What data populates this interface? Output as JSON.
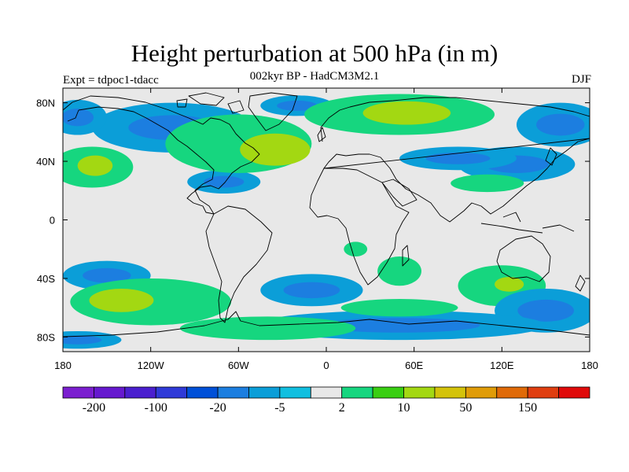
{
  "title": "Height perturbation at 500 hPa (in m)",
  "subtitle": "002kyr BP - HadCM3M2.1",
  "experiment": "Expt = tdpoc1-tdacc",
  "season": "DJF",
  "map": {
    "projection": "cylindrical-equidistant",
    "lon_range": [
      -180,
      180
    ],
    "lat_range": [
      -90,
      90
    ],
    "background_color": "#e8e8e8",
    "lon_ticks": [
      {
        "value": -180,
        "label": "180"
      },
      {
        "value": -120,
        "label": "120W"
      },
      {
        "value": -60,
        "label": "60W"
      },
      {
        "value": 0,
        "label": "0"
      },
      {
        "value": 60,
        "label": "60E"
      },
      {
        "value": 120,
        "label": "120E"
      },
      {
        "value": 180,
        "label": "180"
      }
    ],
    "lat_ticks": [
      {
        "value": 80,
        "label": "80N"
      },
      {
        "value": 40,
        "label": "40N"
      },
      {
        "value": 0,
        "label": "0"
      },
      {
        "value": -40,
        "label": "40S"
      },
      {
        "value": -80,
        "label": "80S"
      }
    ]
  },
  "colorbar": {
    "colors": [
      "#7b1fd0",
      "#6619cf",
      "#4a1fcf",
      "#2f3ad8",
      "#0050d8",
      "#1c7ee0",
      "#0b9ed8",
      "#11bfe0",
      "#e8e8e8",
      "#16d67f",
      "#39cf12",
      "#a3d812",
      "#d4c30a",
      "#e09c08",
      "#e06a08",
      "#e03e10",
      "#e00a0a"
    ],
    "labels": [
      {
        "index": 1,
        "label": "-200"
      },
      {
        "index": 3,
        "label": "-100"
      },
      {
        "index": 5,
        "label": "-20"
      },
      {
        "index": 7,
        "label": "-5"
      },
      {
        "index": 9,
        "label": "2"
      },
      {
        "index": 11,
        "label": "10"
      },
      {
        "index": 13,
        "label": "50"
      },
      {
        "index": 15,
        "label": "150"
      }
    ]
  },
  "field_blobs": [
    {
      "lon": -105,
      "lat": 63,
      "rlon": 55,
      "rlat": 17,
      "value": -8
    },
    {
      "lon": 160,
      "lat": 65,
      "rlon": 30,
      "rlat": 15,
      "value": -8
    },
    {
      "lon": -170,
      "lat": 70,
      "rlon": 20,
      "rlat": 12,
      "value": -8
    },
    {
      "lon": 130,
      "lat": 38,
      "rlon": 40,
      "rlat": 12,
      "value": -8
    },
    {
      "lon": 90,
      "lat": 42,
      "rlon": 40,
      "rlat": 8,
      "value": -8
    },
    {
      "lon": -20,
      "lat": 78,
      "rlon": 25,
      "rlat": 7,
      "value": -8
    },
    {
      "lon": -70,
      "lat": 26,
      "rlon": 25,
      "rlat": 8,
      "value": -8
    },
    {
      "lon": -60,
      "lat": 52,
      "rlon": 50,
      "rlat": 20,
      "value": 6
    },
    {
      "lon": 50,
      "lat": 72,
      "rlon": 65,
      "rlat": 14,
      "value": 6
    },
    {
      "lon": -160,
      "lat": 36,
      "rlon": 28,
      "rlat": 14,
      "value": 6
    },
    {
      "lon": -35,
      "lat": 48,
      "rlon": 24,
      "rlat": 11,
      "value": 24
    },
    {
      "lon": 55,
      "lat": 73,
      "rlon": 30,
      "rlat": 8,
      "value": 24
    },
    {
      "lon": -158,
      "lat": 37,
      "rlon": 12,
      "rlat": 7,
      "value": 24
    },
    {
      "lon": 110,
      "lat": 25,
      "rlon": 25,
      "rlat": 6,
      "value": 6
    },
    {
      "lon": -150,
      "lat": -38,
      "rlon": 30,
      "rlat": 10,
      "value": -8
    },
    {
      "lon": -10,
      "lat": -48,
      "rlon": 35,
      "rlat": 11,
      "value": -8
    },
    {
      "lon": 50,
      "lat": -35,
      "rlon": 15,
      "rlat": 10,
      "value": 6
    },
    {
      "lon": 20,
      "lat": -20,
      "rlon": 8,
      "rlat": 5,
      "value": 6
    },
    {
      "lon": 120,
      "lat": -45,
      "rlon": 30,
      "rlat": 14,
      "value": 6
    },
    {
      "lon": 125,
      "lat": -44,
      "rlon": 10,
      "rlat": 5,
      "value": 24
    },
    {
      "lon": -120,
      "lat": -56,
      "rlon": 55,
      "rlat": 16,
      "value": 6
    },
    {
      "lon": -140,
      "lat": -55,
      "rlon": 22,
      "rlat": 8,
      "value": 24
    },
    {
      "lon": 150,
      "lat": -62,
      "rlon": 35,
      "rlat": 15,
      "value": -8
    },
    {
      "lon": 50,
      "lat": -72,
      "rlon": 100,
      "rlat": 10,
      "value": -8
    },
    {
      "lon": -40,
      "lat": -74,
      "rlon": 60,
      "rlat": 8,
      "value": 6
    },
    {
      "lon": -170,
      "lat": -82,
      "rlon": 30,
      "rlat": 6,
      "value": -8
    },
    {
      "lon": 50,
      "lat": -60,
      "rlon": 40,
      "rlat": 6,
      "value": 6
    }
  ]
}
